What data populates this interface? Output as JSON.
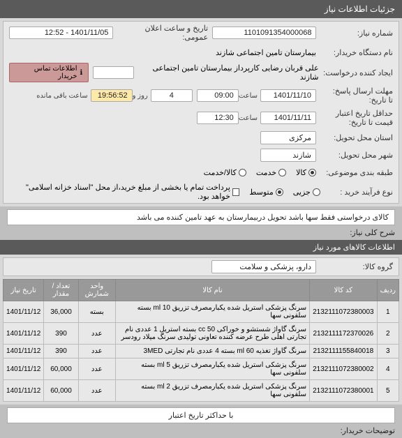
{
  "header": {
    "title": "جزئیات اطلاعات نیاز"
  },
  "info": {
    "need_no_label": "شماره نیاز:",
    "need_no": "1101091354000068",
    "announce_label": "تاریخ و ساعت اعلان عمومی:",
    "announce": "1401/11/05 - 12:52",
    "buyer_org_label": "نام دستگاه خریدار:",
    "buyer_org": "بیمارستان تامین اجتماعی شازند",
    "creator_label": "ایجاد کننده درخواست:",
    "creator": "علی قربان  رضایی کارپرداز بیمارستان تامین اجتماعی شازند",
    "contact_btn": "اطلاعات تماس خریدار",
    "deadline_label": "مهلت ارسال پاسخ:",
    "deadline_until": "تا تاریخ:",
    "deadline_date": "1401/11/10",
    "time_label": "ساعت",
    "deadline_time": "09:00",
    "days_and": "روز و",
    "days": "4",
    "remain_time": "19:56:52",
    "remain_label": "ساعت باقی مانده",
    "credit_end_label": "حداقل تاریخ اعتبار",
    "credit_end_label2": "قیمت تا تاریخ:",
    "credit_date": "1401/11/11",
    "credit_time": "12:30",
    "province_label": "استان محل تحویل:",
    "province": "مرکزی",
    "city_label": "شهر محل تحویل:",
    "city": "شازند",
    "class_label": "طبقه بندی موضوعی:",
    "class_goods": "کالا",
    "class_service": "خدمت",
    "class_goods_service": "کالا/خدمت",
    "purchase_type_label": "نوع فرآیند خرید :",
    "pt_small": "جزیی",
    "pt_medium": "متوسط",
    "pt_note": "پرداخت تمام یا بخشی از مبلغ خرید،از محل \"اسناد خزانه اسلامی\" خواهد بود.",
    "desc_label": "شرح کلی نیاز:",
    "desc": "کالای درخواستی فقط سها باشد تحویل دربیمارستان به عهد تامین کننده می باشد",
    "items_header": "اطلاعات کالاهای مورد نیاز",
    "group_label": "گروه کالا:",
    "group": "دارو، پزشکی و سلامت"
  },
  "table": {
    "headers": {
      "row": "ردیف",
      "code": "کد کالا",
      "name": "نام کالا",
      "unit": "واحد شمارش",
      "qty": "تعداد / مقدار",
      "date": "تاریخ نیاز"
    },
    "rows": [
      {
        "row": "1",
        "code": "2132111072380003",
        "name": "سرنگ پزشکی استریل شده یکبارمصرف تزریق 10 ml بسته سلفونی سها",
        "unit": "بسته",
        "qty": "36,000",
        "date": "1401/11/12"
      },
      {
        "row": "2",
        "code": "2132111172370026",
        "name": "سرنگ گاواژ شستشو و خوراکی 50 cc بسته استریل 1 عددی نام تجارتی اهلی طرح عرضه کننده تعاونی تولیدی سرنگ میلاد رودسر",
        "unit": "عدد",
        "qty": "390",
        "date": "1401/11/12"
      },
      {
        "row": "3",
        "code": "2132111155840018",
        "name": "سرنگ گاواژ تغذیه 60 ml بسته 4 عددی نام تجارتی 3MED",
        "unit": "عدد",
        "qty": "390",
        "date": "1401/11/12"
      },
      {
        "row": "4",
        "code": "2132111072380002",
        "name": "سرنگ پزشکی استریل شده یکبارمصرف تزریق 5 ml بسته سلفونی سها",
        "unit": "عدد",
        "qty": "60,000",
        "date": "1401/11/12"
      },
      {
        "row": "5",
        "code": "2132111072380001",
        "name": "سرنگ پزشکی استریل شده یکبارمصرف تزریق 2 ml بسته سلفونی سها",
        "unit": "عدد",
        "qty": "60,000",
        "date": "1401/11/12"
      }
    ]
  },
  "footer": {
    "buyer_notes_label": "توضیحات خریدار:",
    "credit_note": "با حداکثر تاریخ اعتبار"
  }
}
